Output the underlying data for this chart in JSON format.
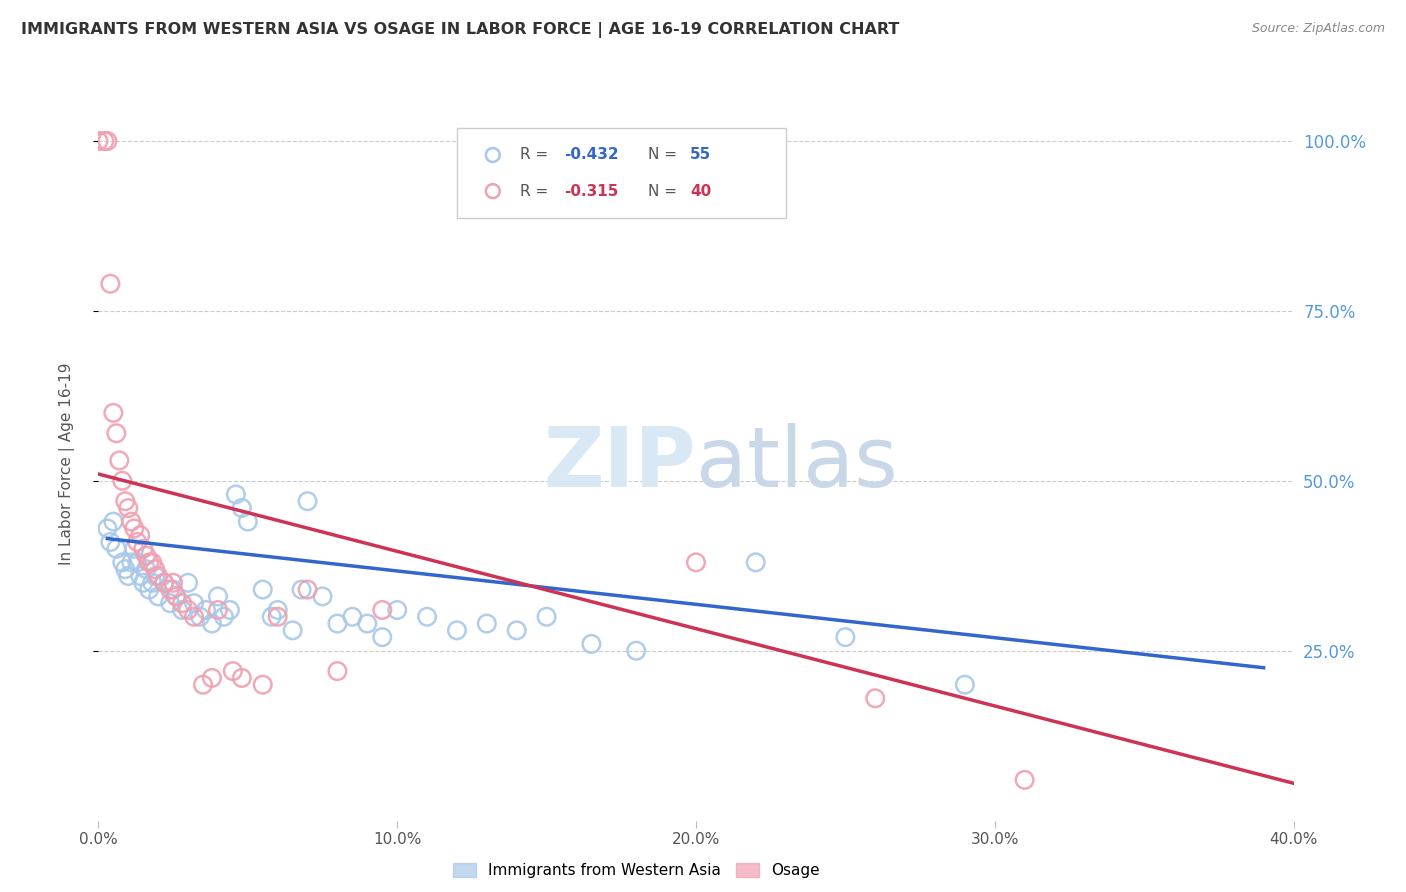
{
  "title": "IMMIGRANTS FROM WESTERN ASIA VS OSAGE IN LABOR FORCE | AGE 16-19 CORRELATION CHART",
  "source": "Source: ZipAtlas.com",
  "ylabel": "In Labor Force | Age 16-19",
  "xlim": [
    0.0,
    0.4
  ],
  "ylim": [
    0.0,
    1.05
  ],
  "xtick_vals": [
    0.0,
    0.1,
    0.2,
    0.3,
    0.4
  ],
  "xtick_labels": [
    "0.0%",
    "10.0%",
    "20.0%",
    "30.0%",
    "40.0%"
  ],
  "ytick_vals": [
    0.25,
    0.5,
    0.75,
    1.0
  ],
  "ytick_labels": [
    "25.0%",
    "50.0%",
    "75.0%",
    "100.0%"
  ],
  "blue_color": "#a8c8e8",
  "pink_color": "#f0a0b0",
  "blue_line_color": "#3366cc",
  "pink_line_color": "#cc3355",
  "watermark_zip": "ZIP",
  "watermark_atlas": "atlas",
  "blue_scatter": [
    [
      0.003,
      0.43
    ],
    [
      0.004,
      0.41
    ],
    [
      0.005,
      0.44
    ],
    [
      0.006,
      0.4
    ],
    [
      0.008,
      0.38
    ],
    [
      0.009,
      0.37
    ],
    [
      0.01,
      0.36
    ],
    [
      0.011,
      0.38
    ],
    [
      0.012,
      0.4
    ],
    [
      0.013,
      0.38
    ],
    [
      0.014,
      0.36
    ],
    [
      0.015,
      0.35
    ],
    [
      0.016,
      0.37
    ],
    [
      0.017,
      0.34
    ],
    [
      0.018,
      0.35
    ],
    [
      0.019,
      0.36
    ],
    [
      0.02,
      0.33
    ],
    [
      0.022,
      0.35
    ],
    [
      0.024,
      0.32
    ],
    [
      0.025,
      0.34
    ],
    [
      0.026,
      0.33
    ],
    [
      0.028,
      0.31
    ],
    [
      0.03,
      0.35
    ],
    [
      0.032,
      0.32
    ],
    [
      0.034,
      0.3
    ],
    [
      0.036,
      0.31
    ],
    [
      0.038,
      0.29
    ],
    [
      0.04,
      0.33
    ],
    [
      0.042,
      0.3
    ],
    [
      0.044,
      0.31
    ],
    [
      0.046,
      0.48
    ],
    [
      0.048,
      0.46
    ],
    [
      0.05,
      0.44
    ],
    [
      0.055,
      0.34
    ],
    [
      0.058,
      0.3
    ],
    [
      0.06,
      0.31
    ],
    [
      0.065,
      0.28
    ],
    [
      0.068,
      0.34
    ],
    [
      0.07,
      0.47
    ],
    [
      0.075,
      0.33
    ],
    [
      0.08,
      0.29
    ],
    [
      0.085,
      0.3
    ],
    [
      0.09,
      0.29
    ],
    [
      0.095,
      0.27
    ],
    [
      0.1,
      0.31
    ],
    [
      0.11,
      0.3
    ],
    [
      0.12,
      0.28
    ],
    [
      0.13,
      0.29
    ],
    [
      0.14,
      0.28
    ],
    [
      0.15,
      0.3
    ],
    [
      0.165,
      0.26
    ],
    [
      0.18,
      0.25
    ],
    [
      0.22,
      0.38
    ],
    [
      0.25,
      0.27
    ],
    [
      0.29,
      0.2
    ]
  ],
  "pink_scatter": [
    [
      0.0,
      1.0
    ],
    [
      0.002,
      1.0
    ],
    [
      0.003,
      1.0
    ],
    [
      0.004,
      0.79
    ],
    [
      0.005,
      0.6
    ],
    [
      0.006,
      0.57
    ],
    [
      0.007,
      0.53
    ],
    [
      0.008,
      0.5
    ],
    [
      0.009,
      0.47
    ],
    [
      0.01,
      0.46
    ],
    [
      0.011,
      0.44
    ],
    [
      0.012,
      0.43
    ],
    [
      0.013,
      0.41
    ],
    [
      0.014,
      0.42
    ],
    [
      0.015,
      0.4
    ],
    [
      0.016,
      0.39
    ],
    [
      0.017,
      0.38
    ],
    [
      0.018,
      0.38
    ],
    [
      0.019,
      0.37
    ],
    [
      0.02,
      0.36
    ],
    [
      0.022,
      0.35
    ],
    [
      0.024,
      0.34
    ],
    [
      0.025,
      0.35
    ],
    [
      0.026,
      0.33
    ],
    [
      0.028,
      0.32
    ],
    [
      0.03,
      0.31
    ],
    [
      0.032,
      0.3
    ],
    [
      0.035,
      0.2
    ],
    [
      0.038,
      0.21
    ],
    [
      0.04,
      0.31
    ],
    [
      0.045,
      0.22
    ],
    [
      0.048,
      0.21
    ],
    [
      0.055,
      0.2
    ],
    [
      0.06,
      0.3
    ],
    [
      0.07,
      0.34
    ],
    [
      0.08,
      0.22
    ],
    [
      0.095,
      0.31
    ],
    [
      0.2,
      0.38
    ],
    [
      0.26,
      0.18
    ],
    [
      0.31,
      0.06
    ]
  ],
  "blue_line_x": [
    0.003,
    0.39
  ],
  "blue_line_y": [
    0.415,
    0.225
  ],
  "pink_line_x": [
    0.0,
    0.4
  ],
  "pink_line_y": [
    0.51,
    0.055
  ]
}
